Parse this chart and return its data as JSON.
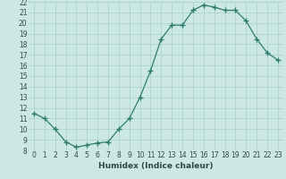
{
  "x": [
    0,
    1,
    2,
    3,
    4,
    5,
    6,
    7,
    8,
    9,
    10,
    11,
    12,
    13,
    14,
    15,
    16,
    17,
    18,
    19,
    20,
    21,
    22,
    23
  ],
  "y": [
    11.5,
    11.0,
    10.0,
    8.8,
    8.3,
    8.5,
    8.7,
    8.8,
    10.0,
    11.0,
    13.0,
    15.5,
    18.5,
    19.8,
    19.8,
    21.2,
    21.7,
    21.5,
    21.2,
    21.2,
    20.2,
    18.5,
    17.2,
    16.5
  ],
  "xlabel": "Humidex (Indice chaleur)",
  "ylim": [
    8,
    22
  ],
  "xlim": [
    -0.5,
    23.5
  ],
  "yticks": [
    8,
    9,
    10,
    11,
    12,
    13,
    14,
    15,
    16,
    17,
    18,
    19,
    20,
    21,
    22
  ],
  "xticks": [
    0,
    1,
    2,
    3,
    4,
    5,
    6,
    7,
    8,
    9,
    10,
    11,
    12,
    13,
    14,
    15,
    16,
    17,
    18,
    19,
    20,
    21,
    22,
    23
  ],
  "line_color": "#2e7d6e",
  "marker_color": "#2e7d6e",
  "bg_color": "#cce8e4",
  "grid_color": "#aacfcb",
  "xlabel_color": "#2e4a46",
  "tick_color": "#2e4a46",
  "tick_fontsize": 5.5,
  "xlabel_fontsize": 6.5,
  "xlabel_fontweight": "bold"
}
